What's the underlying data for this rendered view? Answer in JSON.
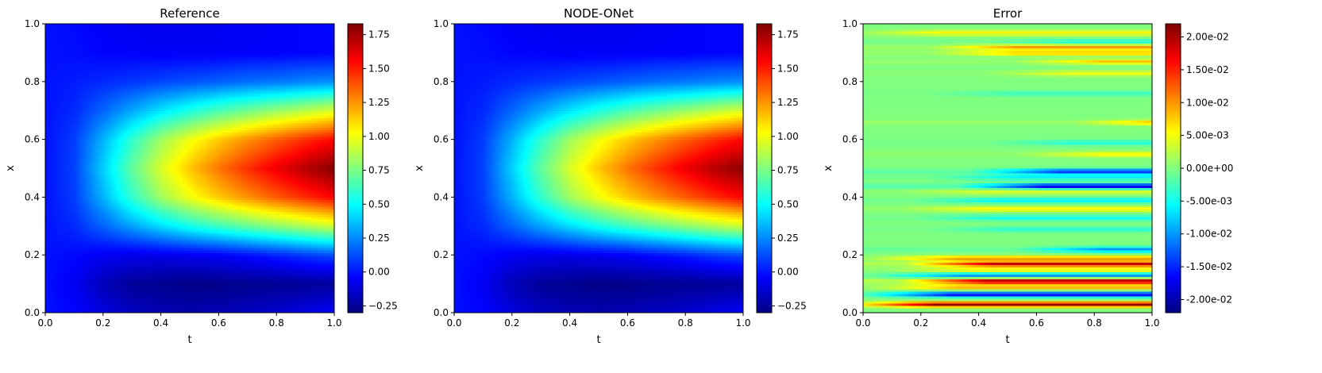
{
  "chart_data": [
    {
      "type": "heatmap",
      "title": "Reference",
      "xlabel": "t",
      "ylabel": "x",
      "xlim": [
        0,
        1
      ],
      "ylim": [
        0,
        1
      ],
      "xticks": [
        "0.0",
        "0.2",
        "0.4",
        "0.6",
        "0.8",
        "1.0"
      ],
      "yticks": [
        "0.0",
        "0.2",
        "0.4",
        "0.6",
        "0.8",
        "1.0"
      ],
      "colormap": "jet",
      "colorbar": {
        "range": [
          -0.3,
          1.83
        ],
        "ticks": [
          -0.25,
          0,
          0.25,
          0.5,
          0.75,
          1.0,
          1.25,
          1.5,
          1.75
        ],
        "tick_labels": [
          "−0.25",
          "0.00",
          "0.25",
          "0.50",
          "0.75",
          "1.00",
          "1.25",
          "1.50",
          "1.75"
        ]
      },
      "field": {
        "t": [
          0.0,
          0.1,
          0.2,
          0.3,
          0.4,
          0.5,
          0.6,
          0.7,
          0.8,
          0.9,
          1.0
        ],
        "x": [
          0.0,
          0.1,
          0.2,
          0.3,
          0.4,
          0.5,
          0.6,
          0.7,
          0.8,
          0.9,
          1.0
        ],
        "values": [
          [
            0.0,
            -0.03,
            -0.1,
            -0.16,
            -0.19,
            -0.2,
            -0.19,
            -0.16,
            -0.13,
            -0.09,
            -0.04
          ],
          [
            0.0,
            -0.06,
            -0.18,
            -0.25,
            -0.27,
            -0.28,
            -0.28,
            -0.27,
            -0.26,
            -0.25,
            -0.24
          ],
          [
            0.0,
            -0.02,
            -0.06,
            -0.08,
            -0.08,
            -0.07,
            -0.05,
            -0.01,
            0.03,
            0.08,
            0.12
          ],
          [
            0.0,
            0.05,
            0.17,
            0.3,
            0.42,
            0.53,
            0.62,
            0.7,
            0.78,
            0.85,
            0.92
          ],
          [
            0.0,
            0.09,
            0.34,
            0.6,
            0.83,
            1.0,
            1.14,
            1.26,
            1.37,
            1.47,
            1.56
          ],
          [
            0.0,
            0.1,
            0.4,
            0.7,
            0.95,
            1.15,
            1.32,
            1.47,
            1.6,
            1.72,
            1.82
          ],
          [
            0.0,
            0.09,
            0.34,
            0.6,
            0.83,
            1.0,
            1.14,
            1.26,
            1.37,
            1.47,
            1.56
          ],
          [
            0.0,
            0.05,
            0.18,
            0.32,
            0.45,
            0.56,
            0.66,
            0.74,
            0.82,
            0.89,
            0.96
          ],
          [
            0.0,
            0.02,
            0.05,
            0.08,
            0.11,
            0.14,
            0.17,
            0.2,
            0.22,
            0.25,
            0.27
          ],
          [
            0.0,
            -0.01,
            -0.03,
            -0.04,
            -0.05,
            -0.05,
            -0.05,
            -0.04,
            -0.04,
            -0.03,
            -0.03
          ],
          [
            0.0,
            -0.02,
            -0.05,
            -0.06,
            -0.07,
            -0.07,
            -0.06,
            -0.05,
            -0.04,
            -0.03,
            -0.02
          ]
        ]
      }
    },
    {
      "type": "heatmap",
      "title": "NODE-ONet",
      "xlabel": "t",
      "ylabel": "x",
      "xlim": [
        0,
        1
      ],
      "ylim": [
        0,
        1
      ],
      "xticks": [
        "0.0",
        "0.2",
        "0.4",
        "0.6",
        "0.8",
        "1.0"
      ],
      "yticks": [
        "0.0",
        "0.2",
        "0.4",
        "0.6",
        "0.8",
        "1.0"
      ],
      "colormap": "jet",
      "colorbar": {
        "range": [
          -0.3,
          1.83
        ],
        "ticks": [
          -0.25,
          0,
          0.25,
          0.5,
          0.75,
          1.0,
          1.25,
          1.5,
          1.75
        ],
        "tick_labels": [
          "−0.25",
          "0.00",
          "0.25",
          "0.50",
          "0.75",
          "1.00",
          "1.25",
          "1.50",
          "1.75"
        ]
      },
      "field": {
        "t": [
          0.0,
          0.1,
          0.2,
          0.3,
          0.4,
          0.5,
          0.6,
          0.7,
          0.8,
          0.9,
          1.0
        ],
        "x": [
          0.0,
          0.1,
          0.2,
          0.3,
          0.4,
          0.5,
          0.6,
          0.7,
          0.8,
          0.9,
          1.0
        ],
        "values": [
          [
            0.0,
            -0.03,
            -0.1,
            -0.16,
            -0.19,
            -0.2,
            -0.19,
            -0.16,
            -0.13,
            -0.09,
            -0.04
          ],
          [
            0.0,
            -0.06,
            -0.18,
            -0.25,
            -0.27,
            -0.28,
            -0.28,
            -0.27,
            -0.26,
            -0.25,
            -0.24
          ],
          [
            0.0,
            -0.02,
            -0.06,
            -0.08,
            -0.08,
            -0.07,
            -0.05,
            -0.01,
            0.03,
            0.08,
            0.12
          ],
          [
            0.0,
            0.05,
            0.17,
            0.3,
            0.42,
            0.53,
            0.62,
            0.7,
            0.78,
            0.85,
            0.92
          ],
          [
            0.0,
            0.09,
            0.34,
            0.6,
            0.83,
            1.0,
            1.14,
            1.26,
            1.37,
            1.47,
            1.56
          ],
          [
            0.0,
            0.1,
            0.4,
            0.7,
            0.95,
            1.15,
            1.32,
            1.47,
            1.6,
            1.72,
            1.81
          ],
          [
            0.0,
            0.09,
            0.34,
            0.6,
            0.83,
            1.0,
            1.14,
            1.26,
            1.37,
            1.47,
            1.56
          ],
          [
            0.0,
            0.05,
            0.18,
            0.32,
            0.45,
            0.56,
            0.66,
            0.74,
            0.82,
            0.89,
            0.96
          ],
          [
            0.0,
            0.02,
            0.05,
            0.08,
            0.11,
            0.14,
            0.17,
            0.2,
            0.22,
            0.25,
            0.27
          ],
          [
            0.0,
            -0.01,
            -0.03,
            -0.04,
            -0.05,
            -0.05,
            -0.05,
            -0.04,
            -0.04,
            -0.03,
            -0.03
          ],
          [
            0.0,
            -0.02,
            -0.05,
            -0.06,
            -0.07,
            -0.07,
            -0.06,
            -0.05,
            -0.04,
            -0.03,
            -0.02
          ]
        ]
      }
    },
    {
      "type": "heatmap",
      "title": "Error",
      "xlabel": "t",
      "ylabel": "x",
      "xlim": [
        0,
        1
      ],
      "ylim": [
        0,
        1
      ],
      "xticks": [
        "0.0",
        "0.2",
        "0.4",
        "0.6",
        "0.8",
        "1.0"
      ],
      "yticks": [
        "0.0",
        "0.2",
        "0.4",
        "0.6",
        "0.8",
        "1.0"
      ],
      "colormap": "jet",
      "colorbar": {
        "range": [
          -0.022,
          0.022
        ],
        "ticks": [
          -0.02,
          -0.015,
          -0.01,
          -0.005,
          0,
          0.005,
          0.01,
          0.015,
          0.02
        ],
        "tick_labels": [
          "-2.00e-02",
          "-1.50e-02",
          "-1.00e-02",
          "-5.00e-03",
          "0.00e+00",
          "5.00e-03",
          "1.00e-02",
          "1.50e-02",
          "2.00e-02"
        ]
      },
      "bands": {
        "x": [
          0.03,
          0.065,
          0.09,
          0.11,
          0.13,
          0.15,
          0.17,
          0.19,
          0.22,
          0.29,
          0.33,
          0.36,
          0.39,
          0.42,
          0.44,
          0.47,
          0.49,
          0.55,
          0.59,
          0.66,
          0.76,
          0.83,
          0.87,
          0.9,
          0.92,
          0.94,
          0.97
        ],
        "amplitude": [
          0.021,
          -0.017,
          0.009,
          0.021,
          -0.01,
          0.006,
          0.019,
          0.01,
          -0.01,
          -0.004,
          -0.005,
          0.006,
          -0.006,
          0.004,
          -0.018,
          -0.006,
          -0.015,
          0.006,
          -0.004,
          0.009,
          -0.003,
          0.005,
          0.008,
          0.008,
          0.01,
          -0.004,
          0.006
        ],
        "growth_start_t": [
          0.02,
          0.08,
          0.1,
          0.2,
          0.12,
          0.15,
          0.22,
          0.1,
          0.6,
          0.3,
          0.25,
          0.2,
          0.25,
          0.2,
          0.4,
          0.3,
          0.45,
          0.6,
          0.5,
          0.8,
          0.3,
          0.5,
          0.6,
          0.3,
          0.3,
          0.5,
          0.05
        ]
      }
    }
  ]
}
